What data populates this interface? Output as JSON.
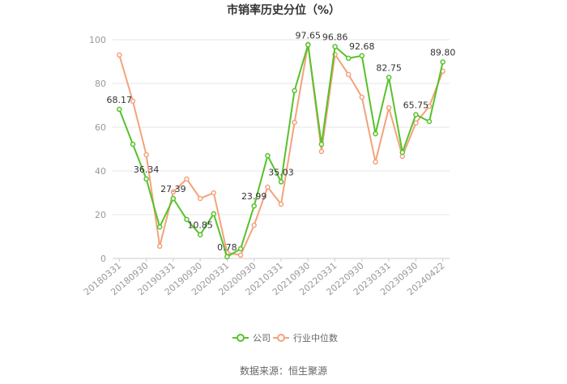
{
  "chart_data": {
    "type": "line",
    "title": "市销率历史分位（%）",
    "x_tick_labels": [
      "20180331",
      "20180930",
      "20190331",
      "20190930",
      "20200331",
      "20200930",
      "20210331",
      "20210930",
      "20220331",
      "20220930",
      "20230331",
      "20230930",
      "20240422"
    ],
    "y_ticks": [
      0,
      20,
      40,
      60,
      80,
      100
    ],
    "ylim": [
      0,
      100
    ],
    "grid": true,
    "legend": "bottom",
    "series": [
      {
        "name": "公司",
        "color": "#56c22a",
        "values": [
          68.17,
          52.2,
          36.34,
          14.4,
          27.39,
          17.8,
          10.85,
          20.4,
          0.78,
          4.4,
          23.99,
          47.0,
          35.03,
          76.7,
          97.65,
          52.2,
          96.86,
          91.5,
          92.68,
          57.0,
          82.75,
          48.5,
          65.75,
          62.6,
          89.8
        ],
        "labels": [
          "68.17",
          null,
          "36.34",
          null,
          "27.39",
          null,
          "10.85",
          null,
          "0.78",
          null,
          "23.99",
          null,
          "35.03",
          null,
          "97.65",
          null,
          "96.86",
          null,
          "92.68",
          null,
          "82.75",
          null,
          "65.75",
          null,
          "89.80"
        ]
      },
      {
        "name": "行业中位数",
        "color": "#f4a27c",
        "values": [
          93.0,
          71.9,
          47.4,
          5.6,
          30.4,
          36.3,
          27.4,
          30.0,
          2.6,
          1.5,
          15.2,
          32.6,
          24.8,
          62.2,
          97.8,
          48.9,
          93.3,
          84.1,
          73.7,
          44.1,
          68.9,
          46.7,
          61.9,
          69.6,
          85.6
        ]
      }
    ]
  },
  "source": "数据来源：恒生聚源"
}
